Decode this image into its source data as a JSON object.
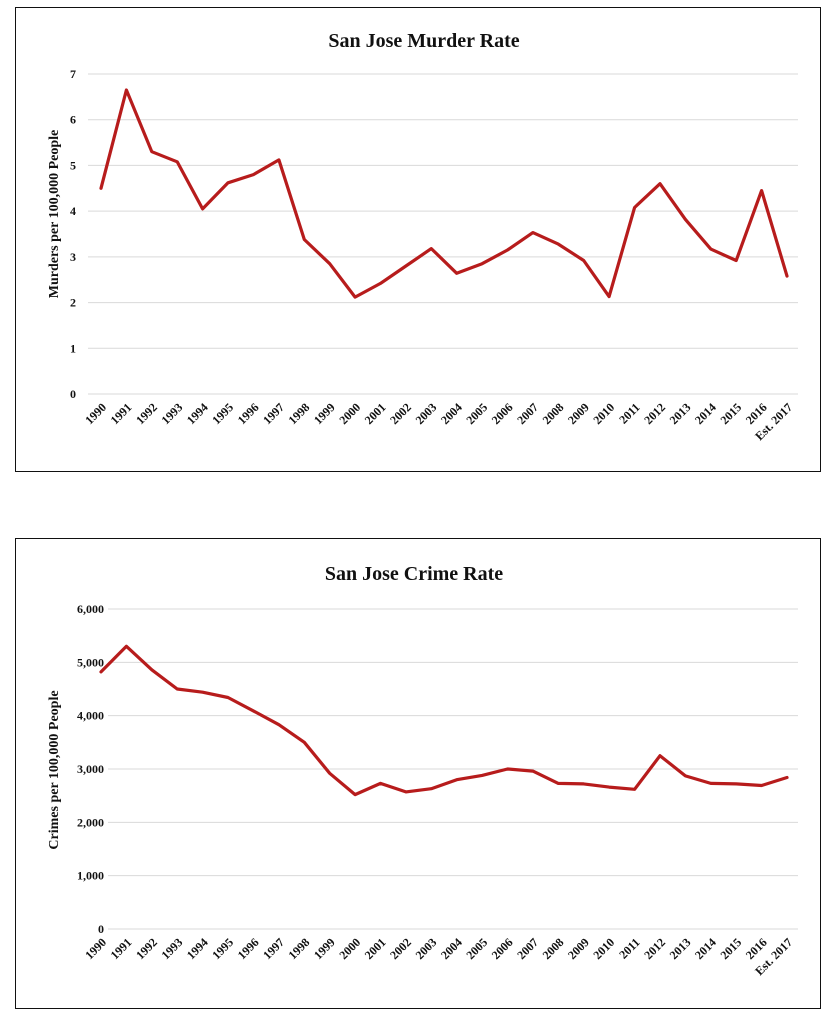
{
  "chart_data": [
    {
      "type": "line",
      "title": "San Jose Murder Rate",
      "xlabel": "",
      "ylabel": "Murders per 100,000 People",
      "ylim": [
        0,
        7
      ],
      "yticks": [
        0,
        1,
        2,
        3,
        4,
        5,
        6,
        7
      ],
      "ytick_labels": [
        "0",
        "1",
        "2",
        "3",
        "4",
        "5",
        "6",
        "7"
      ],
      "grid": true,
      "color": "#b71c1c",
      "categories": [
        "1990",
        "1991",
        "1992",
        "1993",
        "1994",
        "1995",
        "1996",
        "1997",
        "1998",
        "1999",
        "2000",
        "2001",
        "2002",
        "2003",
        "2004",
        "2005",
        "2006",
        "2007",
        "2008",
        "2009",
        "2010",
        "2011",
        "2012",
        "2013",
        "2014",
        "2015",
        "2016",
        "Est. 2017"
      ],
      "values": [
        4.5,
        6.65,
        5.3,
        5.08,
        4.05,
        4.62,
        4.8,
        5.12,
        3.38,
        2.85,
        2.12,
        2.42,
        2.8,
        3.18,
        2.64,
        2.85,
        3.15,
        3.53,
        3.28,
        2.92,
        2.13,
        4.08,
        4.6,
        3.82,
        3.17,
        2.92,
        4.45,
        2.58
      ]
    },
    {
      "type": "line",
      "title": "San Jose Crime Rate",
      "xlabel": "",
      "ylabel": "Crimes per 100,000 People",
      "ylim": [
        0,
        6000
      ],
      "yticks": [
        0,
        1000,
        2000,
        3000,
        4000,
        5000,
        6000
      ],
      "ytick_labels": [
        "0",
        "1,000",
        "2,000",
        "3,000",
        "4,000",
        "5,000",
        "6,000"
      ],
      "grid": true,
      "color": "#b71c1c",
      "categories": [
        "1990",
        "1991",
        "1992",
        "1993",
        "1994",
        "1995",
        "1996",
        "1997",
        "1998",
        "1999",
        "2000",
        "2001",
        "2002",
        "2003",
        "2004",
        "2005",
        "2006",
        "2007",
        "2008",
        "2009",
        "2010",
        "2011",
        "2012",
        "2013",
        "2014",
        "2015",
        "2016",
        "Est. 2017"
      ],
      "values": [
        4820,
        5300,
        4860,
        4500,
        4440,
        4340,
        4090,
        3830,
        3500,
        2920,
        2520,
        2730,
        2570,
        2630,
        2800,
        2880,
        3000,
        2960,
        2730,
        2720,
        2660,
        2620,
        3250,
        2870,
        2730,
        2720,
        2690,
        2840
      ]
    }
  ]
}
